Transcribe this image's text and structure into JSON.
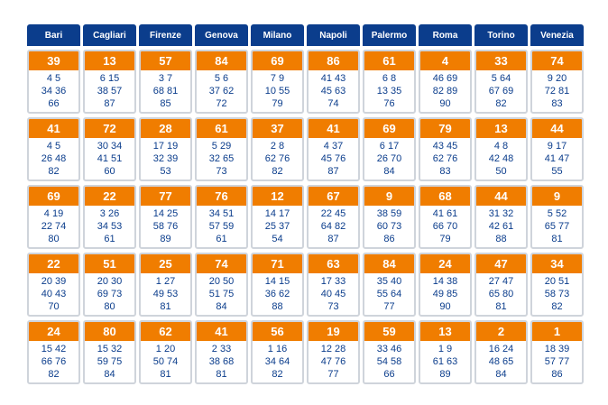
{
  "cities": [
    "Bari",
    "Cagliari",
    "Firenze",
    "Genova",
    "Milano",
    "Napoli",
    "Palermo",
    "Roma",
    "Torino",
    "Venezia"
  ],
  "colors": {
    "header_bg": "#0b3d8c",
    "highlight_bg": "#f07d00",
    "number_text": "#0b3d8c",
    "cell_border": "#cfd4db"
  },
  "rows": [
    [
      {
        "top": "39",
        "lines": [
          "4 5",
          "34 36",
          "66"
        ]
      },
      {
        "top": "13",
        "lines": [
          "6 15",
          "38 57",
          "87"
        ]
      },
      {
        "top": "57",
        "lines": [
          "3 7",
          "68 81",
          "85"
        ]
      },
      {
        "top": "84",
        "lines": [
          "5 6",
          "37 62",
          "72"
        ]
      },
      {
        "top": "69",
        "lines": [
          "7 9",
          "10 55",
          "79"
        ]
      },
      {
        "top": "86",
        "lines": [
          "41 43",
          "45 63",
          "74"
        ]
      },
      {
        "top": "61",
        "lines": [
          "6 8",
          "13 35",
          "76"
        ]
      },
      {
        "top": "4",
        "lines": [
          "46 69",
          "82 89",
          "90"
        ]
      },
      {
        "top": "33",
        "lines": [
          "5 64",
          "67 69",
          "82"
        ]
      },
      {
        "top": "74",
        "lines": [
          "9 20",
          "72 81",
          "83"
        ]
      }
    ],
    [
      {
        "top": "41",
        "lines": [
          "4 5",
          "26 48",
          "82"
        ]
      },
      {
        "top": "72",
        "lines": [
          "30 34",
          "41 51",
          "60"
        ]
      },
      {
        "top": "28",
        "lines": [
          "17 19",
          "32 39",
          "53"
        ]
      },
      {
        "top": "61",
        "lines": [
          "5 29",
          "32 65",
          "73"
        ]
      },
      {
        "top": "37",
        "lines": [
          "2 8",
          "62 76",
          "82"
        ]
      },
      {
        "top": "41",
        "lines": [
          "4 37",
          "45 76",
          "87"
        ]
      },
      {
        "top": "69",
        "lines": [
          "6 17",
          "26 70",
          "84"
        ]
      },
      {
        "top": "79",
        "lines": [
          "43 45",
          "62 76",
          "83"
        ]
      },
      {
        "top": "13",
        "lines": [
          "4 8",
          "42 48",
          "50"
        ]
      },
      {
        "top": "44",
        "lines": [
          "9 17",
          "41 47",
          "55"
        ]
      }
    ],
    [
      {
        "top": "69",
        "lines": [
          "4 19",
          "22 74",
          "80"
        ]
      },
      {
        "top": "22",
        "lines": [
          "3 26",
          "34 53",
          "61"
        ]
      },
      {
        "top": "77",
        "lines": [
          "14 25",
          "58 76",
          "89"
        ]
      },
      {
        "top": "76",
        "lines": [
          "34 51",
          "57 59",
          "61"
        ]
      },
      {
        "top": "12",
        "lines": [
          "14 17",
          "25 37",
          "54"
        ]
      },
      {
        "top": "67",
        "lines": [
          "22 45",
          "64 82",
          "87"
        ]
      },
      {
        "top": "9",
        "lines": [
          "38 59",
          "60 73",
          "86"
        ]
      },
      {
        "top": "68",
        "lines": [
          "41 61",
          "66 70",
          "79"
        ]
      },
      {
        "top": "44",
        "lines": [
          "31 32",
          "42 61",
          "88"
        ]
      },
      {
        "top": "9",
        "lines": [
          "5 52",
          "65 77",
          "81"
        ]
      }
    ],
    [
      {
        "top": "22",
        "lines": [
          "20 39",
          "40 43",
          "70"
        ]
      },
      {
        "top": "51",
        "lines": [
          "20 30",
          "69 73",
          "80"
        ]
      },
      {
        "top": "25",
        "lines": [
          "1 27",
          "49 53",
          "81"
        ]
      },
      {
        "top": "74",
        "lines": [
          "20 50",
          "51 75",
          "84"
        ]
      },
      {
        "top": "71",
        "lines": [
          "14 15",
          "36 62",
          "88"
        ]
      },
      {
        "top": "63",
        "lines": [
          "17 33",
          "40 45",
          "73"
        ]
      },
      {
        "top": "84",
        "lines": [
          "35 40",
          "55 64",
          "77"
        ]
      },
      {
        "top": "24",
        "lines": [
          "14 38",
          "49 85",
          "90"
        ]
      },
      {
        "top": "47",
        "lines": [
          "27 47",
          "65 80",
          "81"
        ]
      },
      {
        "top": "34",
        "lines": [
          "20 51",
          "58 73",
          "82"
        ]
      }
    ],
    [
      {
        "top": "24",
        "lines": [
          "15 42",
          "66 76",
          "82"
        ]
      },
      {
        "top": "80",
        "lines": [
          "15 32",
          "59 75",
          "84"
        ]
      },
      {
        "top": "62",
        "lines": [
          "1 20",
          "50 74",
          "81"
        ]
      },
      {
        "top": "41",
        "lines": [
          "2 33",
          "38 68",
          "81"
        ]
      },
      {
        "top": "56",
        "lines": [
          "1 16",
          "34 64",
          "82"
        ]
      },
      {
        "top": "19",
        "lines": [
          "12 28",
          "47 76",
          "77"
        ]
      },
      {
        "top": "59",
        "lines": [
          "33 46",
          "54 58",
          "66"
        ]
      },
      {
        "top": "13",
        "lines": [
          "1 9",
          "61 63",
          "89"
        ]
      },
      {
        "top": "2",
        "lines": [
          "16 24",
          "48 65",
          "84"
        ]
      },
      {
        "top": "1",
        "lines": [
          "18 39",
          "57 77",
          "86"
        ]
      }
    ]
  ]
}
